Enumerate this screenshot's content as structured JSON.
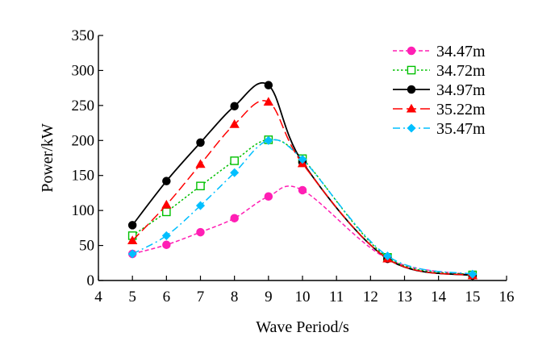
{
  "chart_data": {
    "type": "line",
    "title": "",
    "xlabel": "Wave Period/s",
    "ylabel": "Power/kW",
    "xlim": [
      4,
      16
    ],
    "ylim": [
      0,
      350
    ],
    "xticks": [
      4,
      5,
      6,
      7,
      8,
      9,
      10,
      11,
      12,
      13,
      14,
      15,
      16
    ],
    "yticks": [
      0,
      50,
      100,
      150,
      200,
      250,
      300,
      350
    ],
    "grid": false,
    "legend_position": "top-right",
    "series": [
      {
        "name": "34.47m",
        "color": "#ff1fb4",
        "dash": "dashed",
        "marker": "circle",
        "marker_fill": "filled",
        "x": [
          5,
          6,
          7,
          8,
          9,
          10,
          12.5,
          15
        ],
        "y": [
          38,
          51,
          69,
          89,
          120,
          129,
          31,
          8
        ]
      },
      {
        "name": "34.72m",
        "color": "#00c000",
        "dash": "dotted",
        "marker": "square",
        "marker_fill": "open",
        "x": [
          5,
          6,
          7,
          8,
          9,
          10,
          12.5,
          15
        ],
        "y": [
          64,
          98,
          135,
          171,
          201,
          174,
          33,
          8
        ]
      },
      {
        "name": "34.97m",
        "color": "#000000",
        "dash": "solid",
        "marker": "circle",
        "marker_fill": "filled",
        "x": [
          5,
          6,
          7,
          8,
          9,
          10,
          12.5,
          15
        ],
        "y": [
          79,
          142,
          197,
          249,
          279,
          169,
          31,
          7
        ]
      },
      {
        "name": "35.22m",
        "color": "#ff0000",
        "dash": "longdash",
        "marker": "triangle",
        "marker_fill": "filled",
        "x": [
          5,
          6,
          7,
          8,
          9,
          10,
          12.5,
          15
        ],
        "y": [
          57,
          108,
          166,
          223,
          255,
          167,
          31,
          7
        ]
      },
      {
        "name": "35.47m",
        "color": "#00bfff",
        "dash": "dashdot",
        "marker": "diamond",
        "marker_fill": "filled",
        "x": [
          5,
          6,
          7,
          8,
          9,
          10,
          12.5,
          15
        ],
        "y": [
          38,
          64,
          107,
          154,
          200,
          173,
          35,
          9
        ]
      }
    ]
  }
}
